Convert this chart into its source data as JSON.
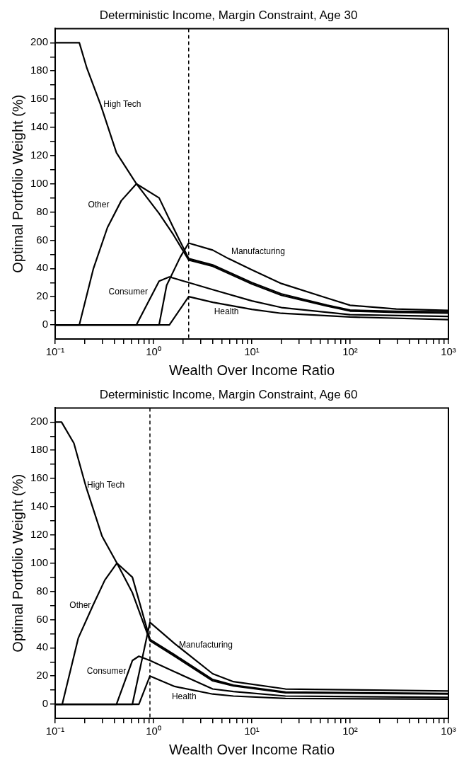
{
  "chart_data": [
    {
      "type": "line",
      "title": "Deterministic Income, Margin Constraint, Age 30",
      "xlabel": "Wealth Over Income Ratio",
      "ylabel": "Optimal Portfolio Weight (%)",
      "log": "x",
      "xlim": [
        0.1,
        1000
      ],
      "ylim": [
        -10,
        210
      ],
      "xticks": [
        {
          "value": 0.1,
          "label": "10⁻¹"
        },
        {
          "value": 0.2,
          "label": null
        },
        {
          "value": 0.3,
          "label": null
        },
        {
          "value": 0.4,
          "label": null
        },
        {
          "value": 0.5,
          "label": null
        },
        {
          "value": 0.6,
          "label": null
        },
        {
          "value": 0.7,
          "label": null
        },
        {
          "value": 0.8,
          "label": null
        },
        {
          "value": 0.9,
          "label": null
        },
        {
          "value": 1,
          "label": "10⁰"
        },
        {
          "value": 2,
          "label": null
        },
        {
          "value": 3,
          "label": null
        },
        {
          "value": 4,
          "label": null
        },
        {
          "value": 5,
          "label": null
        },
        {
          "value": 6,
          "label": null
        },
        {
          "value": 7,
          "label": null
        },
        {
          "value": 8,
          "label": null
        },
        {
          "value": 9,
          "label": null
        },
        {
          "value": 10,
          "label": "10¹"
        },
        {
          "value": 20,
          "label": null
        },
        {
          "value": 30,
          "label": null
        },
        {
          "value": 40,
          "label": null
        },
        {
          "value": 50,
          "label": null
        },
        {
          "value": 60,
          "label": null
        },
        {
          "value": 70,
          "label": null
        },
        {
          "value": 80,
          "label": null
        },
        {
          "value": 90,
          "label": null
        },
        {
          "value": 100,
          "label": "10²"
        },
        {
          "value": 200,
          "label": null
        },
        {
          "value": 300,
          "label": null
        },
        {
          "value": 400,
          "label": null
        },
        {
          "value": 500,
          "label": null
        },
        {
          "value": 600,
          "label": null
        },
        {
          "value": 700,
          "label": null
        },
        {
          "value": 800,
          "label": null
        },
        {
          "value": 900,
          "label": null
        },
        {
          "value": 1000,
          "label": "10³"
        }
      ],
      "yticks": [
        0,
        {
          "value": 10,
          "label": null
        },
        20,
        {
          "value": 30,
          "label": null
        },
        40,
        {
          "value": 50,
          "label": null
        },
        60,
        {
          "value": 70,
          "label": null
        },
        80,
        {
          "value": 90,
          "label": null
        },
        100,
        {
          "value": 110,
          "label": null
        },
        120,
        {
          "value": 130,
          "label": null
        },
        140,
        {
          "value": 150,
          "label": null
        },
        160,
        {
          "value": 170,
          "label": null
        },
        180,
        {
          "value": 190,
          "label": null
        },
        200
      ],
      "ref_lines": [
        {
          "axis": "x",
          "value": 2.28,
          "line_style": "dashed",
          "color": "#000000"
        }
      ],
      "series": [
        {
          "name": "High Tech",
          "color": "#000000",
          "x": [
            0.1,
            0.176,
            0.21,
            0.29,
            0.42,
            0.67,
            1.14,
            1.59,
            2.28,
            4,
            10,
            20,
            58,
            100,
            295,
            1000
          ],
          "values": [
            200,
            200,
            182,
            156,
            122,
            100,
            79,
            64,
            46,
            41.6,
            29,
            21,
            13.4,
            9.8,
            8.8,
            8.4
          ]
        },
        {
          "name": "Other",
          "color": "#000000",
          "x": [
            0.1,
            0.176,
            0.245,
            0.34,
            0.47,
            0.67,
            1.14,
            1.59,
            2.28,
            4,
            10,
            20,
            58,
            100,
            295,
            1000
          ],
          "values": [
            0,
            0,
            40,
            69,
            88,
            100,
            90,
            69,
            47,
            42.5,
            30,
            22,
            14,
            10.5,
            9.6,
            9.2
          ]
        },
        {
          "name": "Manufacturing",
          "color": "#000000",
          "x": [
            0.1,
            1.14,
            1.36,
            1.87,
            2.28,
            4,
            5.78,
            10,
            20,
            58.5,
            100,
            295,
            1000
          ],
          "values": [
            0,
            0,
            28,
            48,
            58,
            53,
            47,
            39,
            29.3,
            19,
            13.9,
            11.3,
            10.3
          ]
        },
        {
          "name": "Consumer",
          "color": "#000000",
          "x": [
            0.1,
            0.67,
            1.14,
            1.45,
            2.28,
            4,
            10,
            20,
            100,
            1000
          ],
          "values": [
            0,
            0,
            31,
            34,
            30,
            25,
            17,
            12.3,
            7.2,
            6
          ]
        },
        {
          "name": "Health",
          "color": "#000000",
          "x": [
            0.1,
            1.45,
            2.28,
            4,
            10,
            20,
            100,
            1000
          ],
          "values": [
            0,
            0,
            20,
            16,
            11,
            8.2,
            5.6,
            3.7
          ]
        }
      ]
    },
    {
      "type": "line",
      "title": "Deterministic Income, Margin Constraint, Age 60",
      "xlabel": "Wealth Over Income Ratio",
      "ylabel": "Optimal Portfolio Weight (%)",
      "log": "x",
      "xlim": [
        0.1,
        1000
      ],
      "ylim": [
        -10,
        210
      ],
      "xticks": [
        {
          "value": 0.1,
          "label": "10⁻¹"
        },
        {
          "value": 0.2,
          "label": null
        },
        {
          "value": 0.3,
          "label": null
        },
        {
          "value": 0.4,
          "label": null
        },
        {
          "value": 0.5,
          "label": null
        },
        {
          "value": 0.6,
          "label": null
        },
        {
          "value": 0.7,
          "label": null
        },
        {
          "value": 0.8,
          "label": null
        },
        {
          "value": 0.9,
          "label": null
        },
        {
          "value": 1,
          "label": "10⁰"
        },
        {
          "value": 2,
          "label": null
        },
        {
          "value": 3,
          "label": null
        },
        {
          "value": 4,
          "label": null
        },
        {
          "value": 5,
          "label": null
        },
        {
          "value": 6,
          "label": null
        },
        {
          "value": 7,
          "label": null
        },
        {
          "value": 8,
          "label": null
        },
        {
          "value": 9,
          "label": null
        },
        {
          "value": 10,
          "label": "10¹"
        },
        {
          "value": 20,
          "label": null
        },
        {
          "value": 30,
          "label": null
        },
        {
          "value": 40,
          "label": null
        },
        {
          "value": 50,
          "label": null
        },
        {
          "value": 60,
          "label": null
        },
        {
          "value": 70,
          "label": null
        },
        {
          "value": 80,
          "label": null
        },
        {
          "value": 90,
          "label": null
        },
        {
          "value": 100,
          "label": "10²"
        },
        {
          "value": 200,
          "label": null
        },
        {
          "value": 300,
          "label": null
        },
        {
          "value": 400,
          "label": null
        },
        {
          "value": 500,
          "label": null
        },
        {
          "value": 600,
          "label": null
        },
        {
          "value": 700,
          "label": null
        },
        {
          "value": 800,
          "label": null
        },
        {
          "value": 900,
          "label": null
        },
        {
          "value": 1000,
          "label": "10³"
        }
      ],
      "yticks": [
        0,
        {
          "value": 10,
          "label": null
        },
        20,
        {
          "value": 30,
          "label": null
        },
        40,
        {
          "value": 50,
          "label": null
        },
        60,
        {
          "value": 70,
          "label": null
        },
        80,
        {
          "value": 90,
          "label": null
        },
        100,
        {
          "value": 110,
          "label": null
        },
        120,
        {
          "value": 130,
          "label": null
        },
        140,
        {
          "value": 150,
          "label": null
        },
        160,
        {
          "value": 170,
          "label": null
        },
        180,
        {
          "value": 190,
          "label": null
        },
        200
      ],
      "ref_lines": [
        {
          "axis": "x",
          "value": 0.92,
          "line_style": "dashed",
          "color": "#000000"
        }
      ],
      "series": [
        {
          "name": "High Tech",
          "color": "#000000",
          "x": [
            0.1,
            0.116,
            0.155,
            0.204,
            0.3,
            0.425,
            0.61,
            0.92,
            1.64,
            4,
            6.5,
            22,
            1000
          ],
          "values": [
            200,
            200,
            185,
            155,
            119,
            100,
            79,
            45,
            34,
            16.6,
            13,
            8.1,
            7.2
          ]
        },
        {
          "name": "Other",
          "color": "#000000",
          "x": [
            0.1,
            0.118,
            0.172,
            0.242,
            0.32,
            0.425,
            0.61,
            0.92,
            1.64,
            4,
            6.5,
            22,
            1000
          ],
          "values": [
            0,
            0,
            47,
            70,
            88,
            100,
            90,
            46,
            35,
            17.5,
            13.5,
            8.6,
            7.6
          ]
        },
        {
          "name": "Manufacturing",
          "color": "#000000",
          "x": [
            0.1,
            0.61,
            0.92,
            1.64,
            4,
            6.5,
            22,
            1000
          ],
          "values": [
            0,
            0,
            58,
            43,
            21.6,
            16,
            10.8,
            9.4
          ]
        },
        {
          "name": "Consumer",
          "color": "#000000",
          "x": [
            0.1,
            0.42,
            0.61,
            0.71,
            0.92,
            1.64,
            4,
            6.5,
            22,
            1000
          ],
          "values": [
            0,
            0,
            31,
            34,
            31,
            23,
            10.8,
            9,
            5.8,
            4.9
          ]
        },
        {
          "name": "Health",
          "color": "#000000",
          "x": [
            0.1,
            0.71,
            0.92,
            1.64,
            4,
            6.5,
            22,
            1000
          ],
          "values": [
            0,
            0,
            20,
            12.6,
            7.2,
            5.8,
            4.1,
            3.6
          ]
        }
      ]
    }
  ]
}
